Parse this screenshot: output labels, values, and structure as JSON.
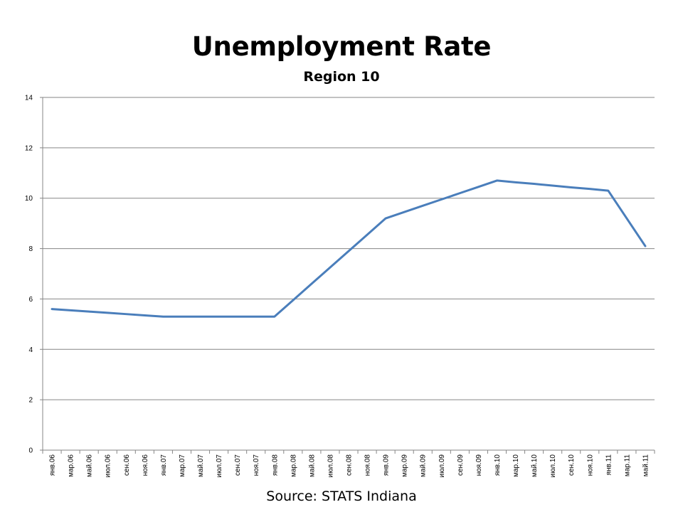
{
  "chart_data": {
    "type": "line",
    "title": "Unemployment Rate",
    "subtitle": "Region 10",
    "source": "Source:  STATS Indiana",
    "xlabel": "",
    "ylabel": "",
    "ylim": [
      0,
      14
    ],
    "yticks": [
      0,
      2,
      4,
      6,
      8,
      10,
      12,
      14
    ],
    "grid": true,
    "legend": "none",
    "line_color": "#4a7ebb",
    "categories": [
      "янв.06",
      "мар.06",
      "май.06",
      "июл.06",
      "сен.06",
      "ноя.06",
      "янв.07",
      "мар.07",
      "май.07",
      "июл.07",
      "сен.07",
      "ноя.07",
      "янв.08",
      "мар.08",
      "май.08",
      "июл.08",
      "сен.08",
      "ноя.08",
      "янв.09",
      "мар.09",
      "май.09",
      "июл.09",
      "сен.09",
      "ноя.09",
      "янв.10",
      "мар.10",
      "май.10",
      "июл.10",
      "сен.10",
      "ноя.10",
      "янв.11",
      "мар.11",
      "май.11"
    ],
    "series": [
      {
        "values": [
          5.6,
          5.55,
          5.5,
          5.45,
          5.4,
          5.35,
          5.3,
          5.3,
          5.3,
          5.3,
          5.3,
          5.3,
          5.3,
          5.95,
          6.6,
          7.25,
          7.9,
          8.55,
          9.2,
          9.45,
          9.7,
          9.95,
          10.2,
          10.45,
          10.7,
          10.63,
          10.57,
          10.5,
          10.43,
          10.37,
          10.3,
          9.2,
          8.1
        ]
      }
    ]
  }
}
